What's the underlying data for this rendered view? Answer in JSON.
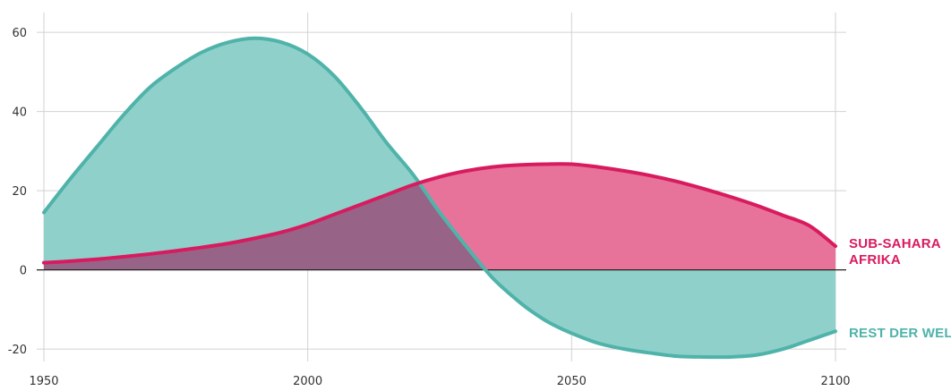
{
  "chart_data": {
    "type": "area",
    "title": "",
    "xlabel": "",
    "ylabel": "",
    "xlim": [
      1950,
      2100
    ],
    "ylim": [
      -22,
      65
    ],
    "x_ticks": [
      1950,
      2000,
      2050,
      2100
    ],
    "y_ticks": [
      -20,
      0,
      20,
      40,
      60
    ],
    "x_tick_labels": [
      "1950",
      "2000",
      "2050",
      "2100"
    ],
    "y_tick_labels": [
      "-20",
      "0",
      "20",
      "40",
      "60"
    ],
    "grid": true,
    "series": [
      {
        "name": "REST DER WELT",
        "label_lines": [
          "REST DER WELT"
        ],
        "color": "#4fb3aa",
        "fill": "#8fd1ca",
        "x": [
          1950,
          1955,
          1960,
          1965,
          1970,
          1975,
          1980,
          1985,
          1990,
          1995,
          2000,
          2005,
          2010,
          2015,
          2020,
          2025,
          2030,
          2035,
          2040,
          2043,
          2046,
          2050,
          2055,
          2060,
          2065,
          2070,
          2075,
          2080,
          2085,
          2090,
          2095,
          2100
        ],
        "values": [
          14.5,
          23,
          31,
          39,
          46,
          51,
          55,
          57.5,
          58.5,
          57.5,
          54.5,
          49,
          41,
          32,
          24,
          14.5,
          6,
          -2,
          -8,
          -11,
          -13.5,
          -16,
          -18.5,
          -20,
          -21,
          -21.8,
          -22,
          -22,
          -21.5,
          -20,
          -17.8,
          -15.5
        ]
      },
      {
        "name": "SUB-SAHARA AFRIKA",
        "label_lines": [
          "SUB-SAHARA",
          "AFRIKA"
        ],
        "color": "#d81b5f",
        "fill": "#e8739a",
        "x": [
          1950,
          1955,
          1960,
          1965,
          1970,
          1975,
          1980,
          1985,
          1990,
          1995,
          2000,
          2005,
          2010,
          2015,
          2020,
          2025,
          2030,
          2035,
          2040,
          2045,
          2050,
          2055,
          2060,
          2065,
          2070,
          2075,
          2080,
          2085,
          2090,
          2095,
          2100
        ],
        "values": [
          1.8,
          2.2,
          2.7,
          3.3,
          4,
          4.8,
          5.7,
          6.7,
          8,
          9.5,
          11.5,
          14,
          16.5,
          19,
          21.5,
          23.5,
          25,
          26,
          26.5,
          26.7,
          26.7,
          26,
          25,
          23.8,
          22.3,
          20.5,
          18.5,
          16.3,
          13.8,
          11.2,
          6
        ]
      }
    ],
    "overlap_fill": "#976387",
    "zero_line_color": "#222222"
  }
}
